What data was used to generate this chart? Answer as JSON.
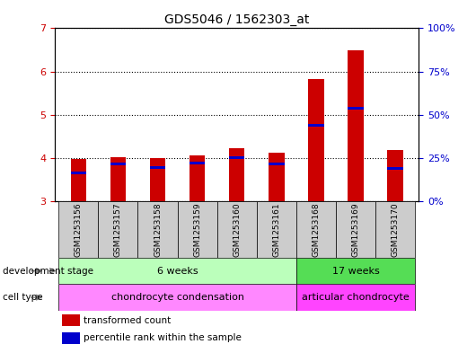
{
  "title": "GDS5046 / 1562303_at",
  "samples": [
    "GSM1253156",
    "GSM1253157",
    "GSM1253158",
    "GSM1253159",
    "GSM1253160",
    "GSM1253161",
    "GSM1253168",
    "GSM1253169",
    "GSM1253170"
  ],
  "transformed_count": [
    3.98,
    4.02,
    3.99,
    4.06,
    4.22,
    4.12,
    5.82,
    6.48,
    4.18
  ],
  "percentile_rank": [
    3.62,
    3.84,
    3.74,
    3.86,
    3.97,
    3.84,
    4.72,
    5.12,
    3.72
  ],
  "ylim": [
    3,
    7
  ],
  "yticks": [
    3,
    4,
    5,
    6,
    7
  ],
  "y2lim": [
    0,
    100
  ],
  "y2ticks": [
    0,
    25,
    50,
    75,
    100
  ],
  "y2ticklabels": [
    "0%",
    "25%",
    "50%",
    "75%",
    "100%"
  ],
  "bar_color": "#cc0000",
  "percentile_color": "#0000cc",
  "bar_width": 0.4,
  "groups": [
    {
      "label": "6 weeks",
      "start": 0,
      "end": 5,
      "color": "#bbffbb"
    },
    {
      "label": "17 weeks",
      "start": 6,
      "end": 8,
      "color": "#55dd55"
    }
  ],
  "cell_types": [
    {
      "label": "chondrocyte condensation",
      "start": 0,
      "end": 5,
      "color": "#ff88ff"
    },
    {
      "label": "articular chondrocyte",
      "start": 6,
      "end": 8,
      "color": "#ff44ff"
    }
  ],
  "dev_stage_label": "development stage",
  "cell_type_label": "cell type",
  "legend_items": [
    {
      "color": "#cc0000",
      "label": "transformed count"
    },
    {
      "color": "#0000cc",
      "label": "percentile rank within the sample"
    }
  ],
  "plot_bg": "#ffffff",
  "sample_bg": "#cccccc",
  "ylabel_color": "#cc0000",
  "y2label_color": "#0000cc"
}
